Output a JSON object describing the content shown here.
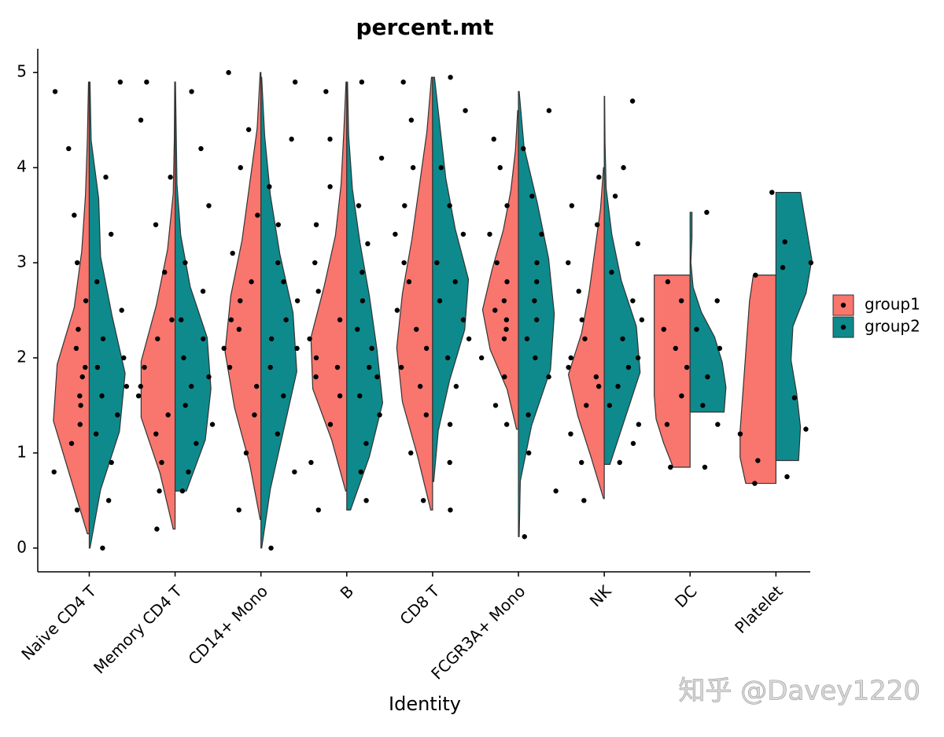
{
  "chart_data": {
    "type": "split-violin",
    "title": "percent.mt",
    "x_label": "Identity",
    "categories": [
      "Naive CD4 T",
      "Memory CD4 T",
      "CD14+ Mono",
      "B",
      "CD8 T",
      "FCGR3A+ Mono",
      "NK",
      "DC",
      "Platelet"
    ],
    "ylim": [
      -0.25,
      5.25
    ],
    "yticks": [
      0,
      1,
      2,
      3,
      4,
      5
    ],
    "legend": "right",
    "series": [
      {
        "name": "group1",
        "color": "#F8766D",
        "violins": [
          {
            "range": [
              0.15,
              4.9
            ],
            "density": [
              0.05,
              0.5,
              0.95,
              0.85,
              0.4,
              0.2,
              0.1,
              0.05,
              0.02
            ],
            "points": [
              0.4,
              0.8,
              1.1,
              1.3,
              1.5,
              1.6,
              1.8,
              1.9,
              2.1,
              2.3,
              2.6,
              3.0,
              3.5,
              4.2,
              4.8
            ]
          },
          {
            "range": [
              0.2,
              4.9
            ],
            "density": [
              0.05,
              0.4,
              0.9,
              0.9,
              0.5,
              0.2,
              0.05,
              0.02,
              0.01
            ],
            "points": [
              0.2,
              0.6,
              0.9,
              1.2,
              1.4,
              1.6,
              1.7,
              1.9,
              2.2,
              2.4,
              2.9,
              3.4,
              3.9,
              4.5,
              4.9
            ]
          },
          {
            "range": [
              0.3,
              5.0
            ],
            "density": [
              0.02,
              0.3,
              0.7,
              0.95,
              0.8,
              0.5,
              0.3,
              0.1,
              0.02
            ],
            "points": [
              0.4,
              1.0,
              1.4,
              1.7,
              1.9,
              2.1,
              2.3,
              2.4,
              2.6,
              2.8,
              3.1,
              3.5,
              4.0,
              4.4,
              5.0
            ]
          },
          {
            "range": [
              0.6,
              4.9
            ],
            "density": [
              0.03,
              0.4,
              0.9,
              0.95,
              0.6,
              0.3,
              0.15,
              0.08,
              0.02
            ],
            "points": [
              0.4,
              0.9,
              1.3,
              1.6,
              1.8,
              1.9,
              2.0,
              2.2,
              2.4,
              2.7,
              3.0,
              3.4,
              3.8,
              4.3,
              4.8
            ]
          },
          {
            "range": [
              0.4,
              4.95
            ],
            "density": [
              0.05,
              0.4,
              0.8,
              0.95,
              0.8,
              0.55,
              0.35,
              0.15,
              0.03
            ],
            "points": [
              0.5,
              1.0,
              1.4,
              1.7,
              1.9,
              2.1,
              2.3,
              2.5,
              2.8,
              3.0,
              3.3,
              3.6,
              4.0,
              4.5,
              4.9
            ]
          },
          {
            "range": [
              1.25,
              4.6
            ],
            "density": [
              0.05,
              0.3,
              0.75,
              0.95,
              0.7,
              0.4,
              0.2,
              0.08,
              0.02
            ],
            "points": [
              1.3,
              1.5,
              1.8,
              2.0,
              2.2,
              2.3,
              2.4,
              2.5,
              2.6,
              2.8,
              3.0,
              3.3,
              3.6,
              4.0,
              4.3
            ]
          },
          {
            "range": [
              0.52,
              4.0
            ],
            "density": [
              0.02,
              0.35,
              0.7,
              0.95,
              0.6,
              0.4,
              0.25,
              0.1,
              0.02
            ],
            "points": [
              0.5,
              0.9,
              1.2,
              1.5,
              1.7,
              1.8,
              1.9,
              2.0,
              2.2,
              2.4,
              2.7,
              3.0,
              3.4,
              3.6,
              3.9
            ]
          },
          {
            "range": [
              0.85,
              2.87
            ],
            "density": [
              0.45,
              0.7,
              0.9,
              0.95,
              0.95,
              0.95,
              0.95,
              0.95,
              0.95
            ],
            "points": [
              0.85,
              1.3,
              1.6,
              1.9,
              2.1,
              2.3,
              2.6,
              2.8
            ]
          },
          {
            "range": [
              0.68,
              2.87
            ],
            "density": [
              0.8,
              0.95,
              0.95,
              0.9,
              0.85,
              0.8,
              0.75,
              0.7,
              0.6
            ],
            "points": [
              0.68,
              0.92,
              1.2,
              2.87,
              3.74
            ]
          }
        ]
      },
      {
        "name": "group2",
        "color": "#0E8A8D",
        "violins": [
          {
            "range": [
              0.0,
              4.9
            ],
            "density": [
              0.02,
              0.3,
              0.8,
              0.95,
              0.6,
              0.3,
              0.25,
              0.05,
              0.02
            ],
            "points": [
              0.0,
              0.5,
              0.9,
              1.2,
              1.4,
              1.6,
              1.7,
              1.9,
              2.0,
              2.2,
              2.5,
              2.8,
              3.3,
              3.9,
              4.9
            ]
          },
          {
            "range": [
              0.6,
              4.9
            ],
            "density": [
              0.3,
              0.8,
              0.95,
              0.85,
              0.4,
              0.15,
              0.05,
              0.03,
              0.01
            ],
            "points": [
              0.6,
              0.8,
              1.1,
              1.3,
              1.5,
              1.7,
              1.8,
              2.0,
              2.2,
              2.4,
              2.7,
              3.0,
              3.6,
              4.2,
              4.8
            ]
          },
          {
            "range": [
              0.0,
              4.95
            ],
            "density": [
              0.02,
              0.25,
              0.6,
              0.95,
              0.85,
              0.5,
              0.25,
              0.1,
              0.02
            ],
            "points": [
              0.0,
              0.8,
              1.2,
              1.6,
              1.9,
              2.1,
              2.2,
              2.4,
              2.6,
              2.8,
              3.0,
              3.4,
              3.8,
              4.3,
              4.9
            ]
          },
          {
            "range": [
              0.4,
              4.9
            ],
            "density": [
              0.1,
              0.6,
              0.95,
              0.8,
              0.6,
              0.35,
              0.15,
              0.05,
              0.02
            ],
            "points": [
              0.5,
              0.8,
              1.1,
              1.4,
              1.6,
              1.8,
              1.9,
              2.1,
              2.3,
              2.6,
              2.9,
              3.2,
              3.6,
              4.1,
              4.9
            ]
          },
          {
            "range": [
              0.7,
              4.95
            ],
            "density": [
              0.03,
              0.15,
              0.45,
              0.85,
              0.95,
              0.6,
              0.35,
              0.2,
              0.05
            ],
            "points": [
              0.4,
              0.9,
              1.3,
              1.7,
              2.0,
              2.2,
              2.4,
              2.6,
              2.8,
              3.0,
              3.3,
              3.6,
              4.0,
              4.6,
              4.95
            ]
          },
          {
            "range": [
              0.12,
              4.8
            ],
            "density": [
              0.02,
              0.05,
              0.35,
              0.85,
              0.95,
              0.8,
              0.5,
              0.15,
              0.02
            ],
            "points": [
              0.12,
              0.6,
              1.0,
              1.4,
              1.8,
              2.0,
              2.2,
              2.4,
              2.6,
              2.8,
              3.0,
              3.3,
              3.7,
              4.2,
              4.6
            ]
          },
          {
            "range": [
              0.88,
              4.75
            ],
            "density": [
              0.15,
              0.55,
              0.95,
              0.85,
              0.45,
              0.2,
              0.05,
              0.02,
              0.01
            ],
            "points": [
              0.9,
              1.1,
              1.3,
              1.5,
              1.7,
              1.9,
              2.0,
              2.2,
              2.4,
              2.6,
              2.9,
              3.2,
              3.7,
              4.0,
              4.7
            ]
          },
          {
            "range": [
              1.43,
              3.53
            ],
            "density": [
              0.9,
              0.95,
              0.85,
              0.65,
              0.3,
              0.08,
              0.02,
              0.05,
              0.05
            ],
            "points": [
              0.85,
              1.3,
              1.5,
              1.8,
              2.1,
              2.3,
              2.6,
              3.53
            ]
          },
          {
            "range": [
              0.92,
              3.74
            ],
            "density": [
              0.6,
              0.65,
              0.55,
              0.4,
              0.45,
              0.8,
              0.95,
              0.8,
              0.65
            ],
            "points": [
              0.75,
              1.25,
              1.58,
              2.95,
              3.0,
              3.22
            ]
          }
        ]
      }
    ],
    "watermark": "知乎 @Davey1220"
  }
}
